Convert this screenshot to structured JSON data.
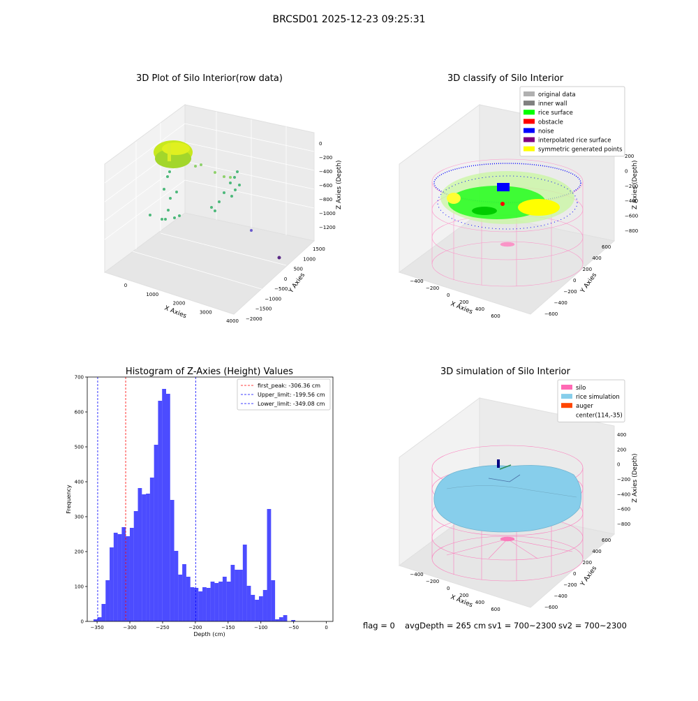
{
  "suptitle": "BRCSD01 2025-12-23 09:25:31",
  "footer": {
    "flag": "flag = 0",
    "avg_depth": "avgDepth = 265 cm",
    "sv1": "sv1 = 700~2300",
    "sv2": "sv2 = 700~2300"
  },
  "panels": {
    "raw": {
      "title": "3D Plot of Silo Interior(row data)",
      "xlabel": "X Axies",
      "ylabel": "Y Axies",
      "zlabel": "Z Axies (Depth)",
      "xticks": [
        "0",
        "1000",
        "2000",
        "3000",
        "4000"
      ],
      "yticks": [
        "−2000",
        "−1500",
        "−1000",
        "−500",
        "0",
        "500",
        "1000",
        "1500"
      ],
      "zticks": [
        "0",
        "−200",
        "−400",
        "−600",
        "−800",
        "−1000",
        "−1200"
      ]
    },
    "classify": {
      "title": "3D classify of Silo Interior",
      "xlabel": "X Axies",
      "ylabel": "Y Axies",
      "zlabel": "Z Axies (Depth)",
      "xticks": [
        "−400",
        "−200",
        "0",
        "200",
        "400",
        "600"
      ],
      "yticks": [
        "−600",
        "−400",
        "−200",
        "0",
        "200",
        "400",
        "600"
      ],
      "zticks": [
        "200",
        "0",
        "−200",
        "−400",
        "−600",
        "−800"
      ],
      "legend": [
        {
          "label": "original data",
          "color": "#b0b0b0"
        },
        {
          "label": "inner wall",
          "color": "#808080"
        },
        {
          "label": "rice surface",
          "color": "#00ff00"
        },
        {
          "label": "obstacle",
          "color": "#ff0000"
        },
        {
          "label": "noise",
          "color": "#0000ff"
        },
        {
          "label": "interpolated rice surface",
          "color": "#800080"
        },
        {
          "label": "symmetric generated points",
          "color": "#ffff00"
        }
      ]
    },
    "simulation": {
      "title": "3D simulation of Silo Interior",
      "xlabel": "X Axies",
      "ylabel": "Y Axies",
      "zlabel": "Z Axies (Depth)",
      "xticks": [
        "−400",
        "−200",
        "0",
        "200",
        "400",
        "600"
      ],
      "yticks": [
        "−600",
        "−400",
        "−200",
        "0",
        "200",
        "400",
        "600"
      ],
      "zticks": [
        "400",
        "200",
        "0",
        "−200",
        "−400",
        "−600",
        "−800"
      ],
      "legend": [
        {
          "label": "silo",
          "color": "#ff69b4"
        },
        {
          "label": "rice simulation",
          "color": "#87ceeb"
        },
        {
          "label": "auger",
          "color": "#ff4500"
        },
        {
          "label": "center(114,-35)",
          "color": ""
        }
      ]
    }
  },
  "chart_data": {
    "type": "bar",
    "title": "Histogram of Z-Axies (Height) Values",
    "xlabel": "Depth (cm)",
    "ylabel": "Frequency",
    "xlim": [
      -365,
      10
    ],
    "ylim": [
      0,
      700
    ],
    "xticks": [
      -350,
      -300,
      -250,
      -200,
      -150,
      -100,
      -50,
      0
    ],
    "xtick_labels": [
      "−350",
      "−300",
      "−250",
      "−200",
      "−150",
      "−100",
      "−50",
      "0"
    ],
    "yticks": [
      0,
      100,
      200,
      300,
      400,
      500,
      600,
      700
    ],
    "bin_start": -355.5,
    "bin_width": 6.16,
    "values": [
      6,
      12,
      50,
      118,
      212,
      254,
      250,
      270,
      244,
      268,
      316,
      382,
      364,
      366,
      412,
      506,
      632,
      666,
      652,
      348,
      202,
      134,
      164,
      128,
      98,
      96,
      86,
      98,
      96,
      114,
      110,
      114,
      128,
      114,
      162,
      148,
      148,
      220,
      102,
      76,
      62,
      72,
      90,
      322,
      118,
      6,
      12,
      18,
      0,
      4
    ],
    "bar_color": "#0000ff",
    "vlines": [
      {
        "label": "first_peak: -306.36 cm",
        "x": -306.36,
        "color": "#ff0000"
      },
      {
        "label": "Upper_limit: -199.56 cm",
        "x": -199.56,
        "color": "#0000ff"
      },
      {
        "label": "Lower_limit: -349.08 cm",
        "x": -349.08,
        "color": "#0000ff"
      }
    ],
    "legend_position": "upper right",
    "grid": false
  }
}
